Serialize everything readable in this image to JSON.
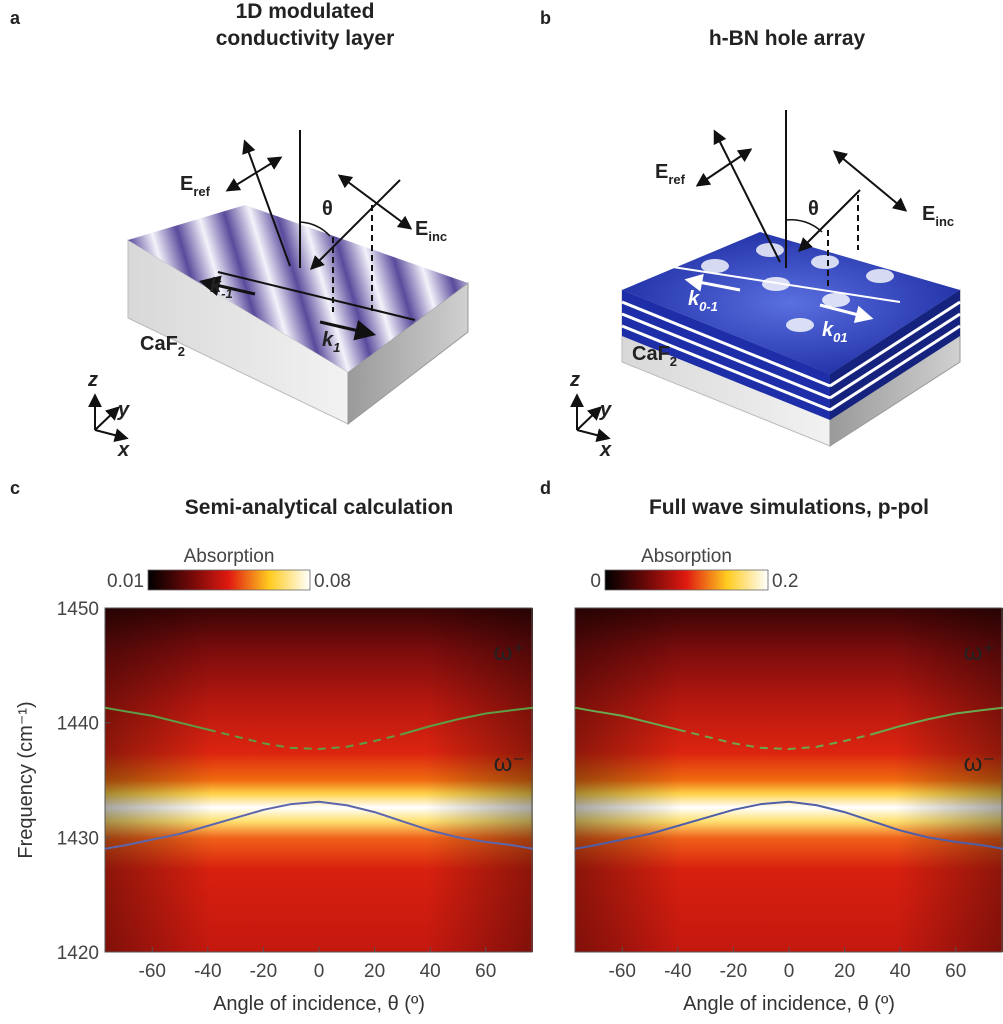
{
  "panels": [
    {
      "label": "a",
      "title": [
        "1D modulated",
        "conductivity layer"
      ],
      "annotations": {
        "e_ref": {
          "text": "E",
          "sub": "ref"
        },
        "theta": "θ",
        "e_inc": {
          "text": "E",
          "sub": "inc"
        },
        "k_left": {
          "text": "k",
          "sub": "-1"
        },
        "k_right": {
          "text": "k",
          "sub": "1"
        },
        "substrate": {
          "text": "CaF",
          "sub": "2"
        },
        "axis_z": "z",
        "axis_y": "y",
        "axis_x": "x"
      }
    },
    {
      "label": "b",
      "title": [
        "h-BN hole array"
      ],
      "annotations": {
        "e_ref": {
          "text": "E",
          "sub": "ref"
        },
        "theta": "θ",
        "e_inc": {
          "text": "E",
          "sub": "inc"
        },
        "k_left": {
          "text": "k",
          "sub": "0-1"
        },
        "k_right": {
          "text": "k",
          "sub": "01"
        },
        "substrate": {
          "text": "CaF",
          "sub": "2"
        },
        "axis_z": "z",
        "axis_y": "y",
        "axis_x": "x"
      }
    }
  ],
  "chart_data": [
    {
      "type": "heatmap",
      "panel_label": "c",
      "title": "Semi-analytical calculation",
      "colorbar": {
        "label": "Absorption",
        "ticks": [
          0.01,
          0.08
        ]
      },
      "xlim": [
        -77,
        77
      ],
      "xticks": [
        -60,
        -40,
        -20,
        0,
        20,
        40,
        60
      ],
      "ylim": [
        1420,
        1450
      ],
      "yticks": [
        1420,
        1430,
        1440,
        1450
      ],
      "xlabel": "Angle of incidence, θ (º)",
      "ylabel": "Frequency (cm⁻¹)",
      "x": [
        -77,
        -70,
        -60,
        -50,
        -40,
        -30,
        -20,
        -10,
        0,
        10,
        20,
        30,
        40,
        50,
        60,
        70,
        77
      ],
      "series": [
        {
          "name": "ω⁺",
          "color": "#5e9e46",
          "values": [
            1441.3,
            1441.0,
            1440.6,
            1440.0,
            1439.4,
            null,
            null,
            null,
            null,
            null,
            null,
            1439.0,
            1439.7,
            1440.3,
            1440.8,
            1441.1,
            1441.3
          ]
        },
        {
          "color": "#5e9e46",
          "style": "dashed",
          "values": [
            null,
            null,
            null,
            null,
            1439.4,
            1438.8,
            1438.2,
            1437.8,
            1437.7,
            1437.9,
            1438.4,
            1439.0,
            null,
            null,
            null,
            null,
            null
          ]
        },
        {
          "name": "ω⁻",
          "color": "#5b66ac",
          "values": [
            1429.0,
            1429.3,
            1429.8,
            1430.3,
            1431.0,
            1431.7,
            1432.4,
            1432.9,
            1433.1,
            1432.8,
            1432.2,
            1431.4,
            1430.6,
            1430.0,
            1429.6,
            1429.3,
            1429.0
          ]
        }
      ]
    },
    {
      "type": "heatmap",
      "panel_label": "d",
      "title": "Full wave simulations, p-pol",
      "colorbar": {
        "label": "Absorption",
        "ticks": [
          0,
          0.2
        ]
      },
      "xlim": [
        -77,
        77
      ],
      "xticks": [
        -60,
        -40,
        -20,
        0,
        20,
        40,
        60
      ],
      "ylim": [
        1420,
        1450
      ],
      "xlabel": "Angle of incidence, θ (º)",
      "x": [
        -77,
        -70,
        -60,
        -50,
        -40,
        -30,
        -20,
        -10,
        0,
        10,
        20,
        30,
        40,
        50,
        60,
        70,
        77
      ],
      "series": [
        {
          "name": "ω⁺",
          "color": "#6aa84f",
          "values": [
            1441.3,
            1441.0,
            1440.6,
            1440.0,
            1439.4,
            null,
            null,
            null,
            null,
            null,
            null,
            1439.0,
            1439.7,
            1440.3,
            1440.8,
            1441.1,
            1441.3
          ]
        },
        {
          "color": "#6aa84f",
          "style": "dashed",
          "values": [
            null,
            null,
            null,
            null,
            1439.4,
            1438.8,
            1438.2,
            1437.8,
            1437.7,
            1437.9,
            1438.4,
            1439.0,
            null,
            null,
            null,
            null,
            null
          ]
        },
        {
          "name": "ω⁻",
          "color": "#4e5fa8",
          "values": [
            1429.0,
            1429.3,
            1429.8,
            1430.3,
            1431.0,
            1431.7,
            1432.4,
            1432.9,
            1433.1,
            1432.8,
            1432.2,
            1431.4,
            1430.6,
            1430.0,
            1429.6,
            1429.3,
            1429.0
          ]
        }
      ]
    }
  ]
}
